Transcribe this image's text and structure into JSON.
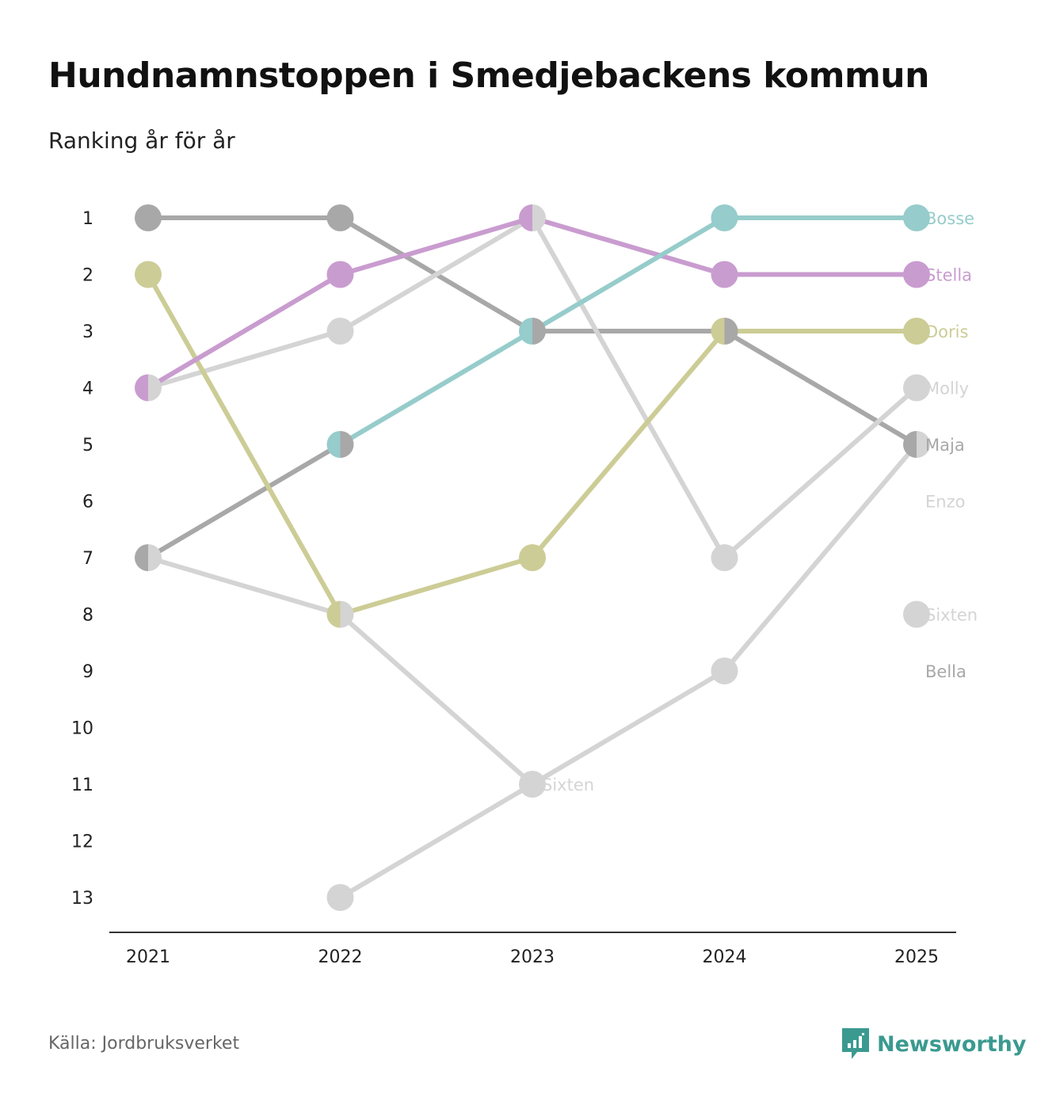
{
  "header": {
    "title": "Hundnamnstoppen i Smedjebackens kommun",
    "subtitle": "Ranking år för år"
  },
  "footer": {
    "source": "Källa: Jordbruksverket",
    "brand": "Newsworthy"
  },
  "chart_data": {
    "type": "line",
    "title": "Hundnamnstoppen i Smedjebackens kommun",
    "subtitle": "Ranking år för år",
    "xlabel": "",
    "ylabel": "",
    "categories": [
      "2021",
      "2022",
      "2023",
      "2024",
      "2025"
    ],
    "y_ticks": [
      "1",
      "2",
      "3",
      "4",
      "5",
      "6",
      "7",
      "8",
      "9",
      "10",
      "11",
      "12",
      "13"
    ],
    "ylim": [
      1,
      13
    ],
    "y_inverted": true,
    "grid": false,
    "series": [
      {
        "name": "Bosse",
        "color": "#96cccb",
        "values": [
          null,
          5,
          3,
          1,
          1
        ]
      },
      {
        "name": "Stella",
        "color": "#c99ccf",
        "values": [
          4,
          2,
          1,
          2,
          2
        ]
      },
      {
        "name": "Doris",
        "color": "#cccc96",
        "values": [
          2,
          8,
          7,
          3,
          3
        ]
      },
      {
        "name": "Molly",
        "color": "#d4d4d4",
        "values": [
          4,
          3,
          1,
          7,
          4
        ]
      },
      {
        "name": "Maja",
        "color": "#a8a8a8",
        "values": [
          1,
          1,
          3,
          3,
          5
        ]
      },
      {
        "name": "Enzo",
        "color": "#d4d4d4",
        "values": [
          null,
          13,
          11,
          9,
          5
        ]
      },
      {
        "name": "Bella",
        "color": "#a8a8a8",
        "values": [
          7,
          5,
          null,
          null,
          null
        ]
      },
      {
        "name": "Sixten",
        "color": "#d4d4d4",
        "values": [
          7,
          8,
          11,
          null,
          8
        ]
      }
    ],
    "annotations": [
      {
        "text": "Sixten",
        "x": "2023",
        "y": 11
      }
    ],
    "shared_rank_color": "#6e6e74"
  }
}
